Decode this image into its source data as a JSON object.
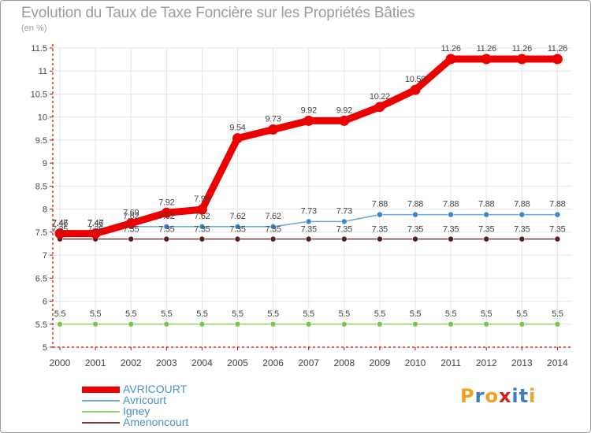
{
  "title": "Evolution du Taux de Taxe Foncière sur les Propriétés Bâties",
  "unit_label": "(en %)",
  "logo_text": "Proxiti",
  "colors": {
    "title": "#9c9c9c",
    "axis": "#cc0000",
    "grid": "#e6e6e6",
    "label": "#444444",
    "logo_letters": [
      "#f0a020",
      "#3a7fc4",
      "#f0a020",
      "#d02020",
      "#3a7fc4",
      "#3a7fc4",
      "#f0a020"
    ]
  },
  "chart_data": {
    "type": "line",
    "x": [
      "2000",
      "2001",
      "2002",
      "2003",
      "2004",
      "2005",
      "2006",
      "2007",
      "2008",
      "2009",
      "2010",
      "2011",
      "2012",
      "2013",
      "2014"
    ],
    "ylim": [
      5,
      11.5
    ],
    "yticks": [
      "5",
      "5.5",
      "6",
      "6.5",
      "7",
      "7.5",
      "8",
      "8.5",
      "9",
      "9.5",
      "10",
      "10.5",
      "11",
      "11.5"
    ],
    "grid": true,
    "legend_position": "bottom-left",
    "series": [
      {
        "name": "AVRICOURT",
        "color": "#ee0000",
        "emphasis": true,
        "values": [
          7.47,
          7.47,
          7.69,
          7.92,
          7.99,
          9.54,
          9.73,
          9.92,
          9.92,
          10.22,
          10.59,
          11.26,
          11.26,
          11.26,
          11.26
        ],
        "labels": [
          "7.47",
          "7.47",
          "7.69",
          "7.92",
          "7.99",
          "9.54",
          "9.73",
          "9.92",
          "9.92",
          "10.22",
          "10.59",
          "11.26",
          "11.26",
          "11.26",
          "11.26"
        ]
      },
      {
        "name": "Avricourt",
        "color": "#6aa6d6",
        "marker_color": "#3a86c8",
        "values": [
          7.46,
          7.46,
          7.62,
          7.62,
          7.62,
          7.62,
          7.62,
          7.73,
          7.73,
          7.88,
          7.88,
          7.88,
          7.88,
          7.88,
          7.88
        ],
        "labels": [
          "7.46",
          "7.46",
          "7.62",
          "7.62",
          "7.62",
          "7.62",
          "7.62",
          "7.73",
          "7.73",
          "7.88",
          "7.88",
          "7.88",
          "7.88",
          "7.88",
          "7.88"
        ]
      },
      {
        "name": "Igney",
        "color": "#8fd46a",
        "marker_color": "#77c84a",
        "values": [
          5.5,
          5.5,
          5.5,
          5.5,
          5.5,
          5.5,
          5.5,
          5.5,
          5.5,
          5.5,
          5.5,
          5.5,
          5.5,
          5.5,
          5.5
        ],
        "labels": [
          "5.5",
          "5.5",
          "5.5",
          "5.5",
          "5.5",
          "5.5",
          "5.5",
          "5.5",
          "5.5",
          "5.5",
          "5.5",
          "5.5",
          "5.5",
          "5.5",
          "5.5"
        ]
      },
      {
        "name": "Amenoncourt",
        "color": "#7a3a3a",
        "marker_color": "#5a1e1e",
        "values": [
          7.35,
          7.35,
          7.35,
          7.35,
          7.35,
          7.35,
          7.35,
          7.35,
          7.35,
          7.35,
          7.35,
          7.35,
          7.35,
          7.35,
          7.35
        ],
        "labels": [
          "7.35",
          "7.35",
          "7.35",
          "7.35",
          "7.35",
          "7.35",
          "7.35",
          "7.35",
          "7.35",
          "7.35",
          "7.35",
          "7.35",
          "7.35",
          "7.35",
          "7.35"
        ]
      }
    ]
  }
}
